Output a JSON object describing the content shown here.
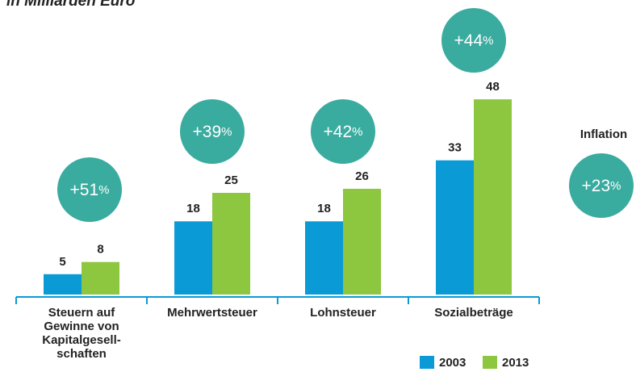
{
  "chart_data": {
    "type": "bar",
    "subtitle": "in Milliarden Euro",
    "categories": [
      "Steuern auf\nGewinne von\nKapitalgesell-\nschaften",
      "Mehrwertsteuer",
      "Lohnsteuer",
      "Sozialbeträge"
    ],
    "series": [
      {
        "name": "2003",
        "color": "#0a9ad6",
        "values": [
          5,
          18,
          18,
          33
        ]
      },
      {
        "name": "2013",
        "color": "#8dc63f",
        "values": [
          8,
          25,
          26,
          48
        ]
      }
    ],
    "changes": [
      {
        "value": 51,
        "label": "+51%"
      },
      {
        "value": 39,
        "label": "+39%"
      },
      {
        "value": 42,
        "label": "+42%"
      },
      {
        "value": 44,
        "label": "+44%"
      }
    ],
    "inflation": {
      "title": "Inflation",
      "value": 23,
      "label": "+23%"
    },
    "ylim": [
      0,
      50
    ],
    "circle_color": "#3aab9f"
  }
}
